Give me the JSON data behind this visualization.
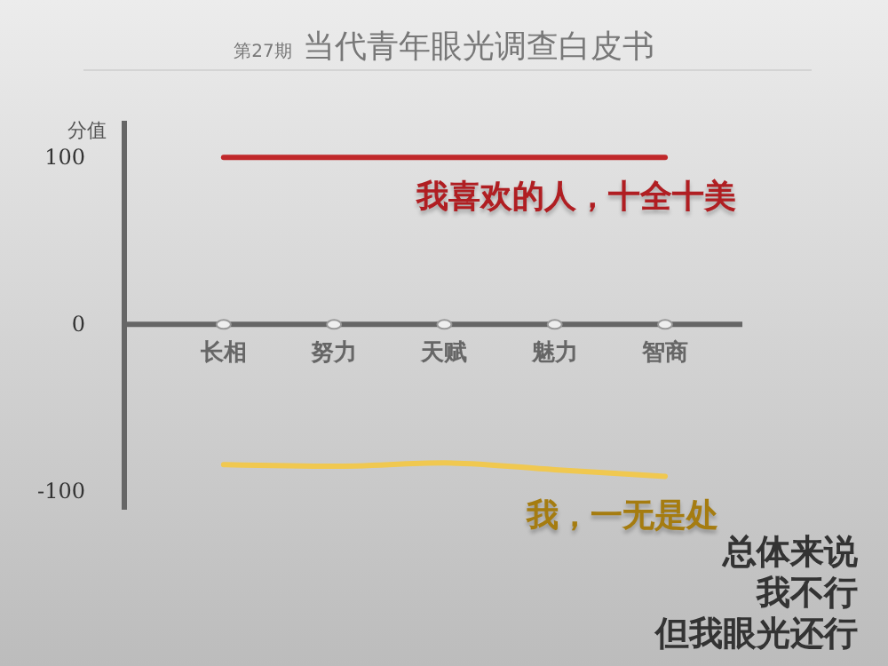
{
  "chart_data": {
    "type": "line",
    "title": "第27期 当代青年眼光调查白皮书",
    "ylabel": "分值",
    "categories": [
      "长相",
      "努力",
      "天赋",
      "魅力",
      "智商"
    ],
    "ylim": [
      -111,
      122
    ],
    "yticks": [
      100,
      0,
      -100
    ],
    "marker": "none",
    "line_style": "solid",
    "series": [
      {
        "name": "我喜欢的人，十全十美",
        "color": "#c0282a",
        "values": [
          100,
          100,
          100,
          100,
          100
        ]
      },
      {
        "name": "我，一无是处",
        "color": "#f0c850",
        "values": [
          -84,
          -85,
          -83,
          -87,
          -91
        ]
      }
    ],
    "annotations": [
      "总体来说",
      "我不行",
      "但我眼光还行"
    ]
  }
}
